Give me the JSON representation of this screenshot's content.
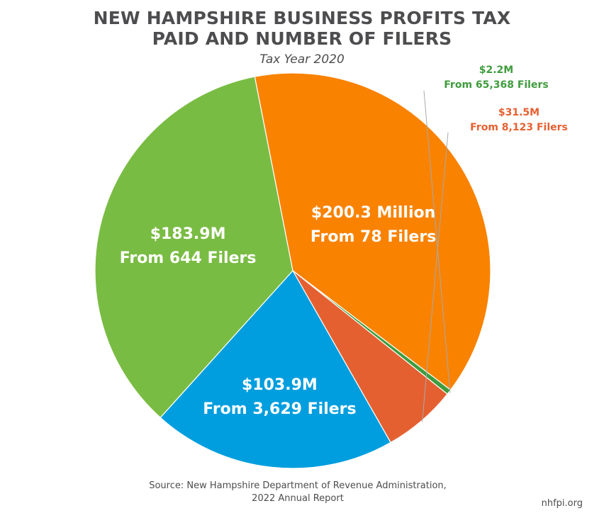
{
  "chart_data": {
    "type": "pie",
    "title_lines": [
      "NEW HAMPSHIRE BUSINESS PROFITS TAX",
      "PAID AND NUMBER OF FILERS"
    ],
    "subtitle": "Tax Year 2020",
    "slices": [
      {
        "value": 200.3,
        "amount_label": "$200.3 Million",
        "filers_label": "From 78 Filers",
        "color": "#f98200",
        "label_inside": true
      },
      {
        "value": 2.2,
        "amount_label": "$2.2M",
        "filers_label": "From 65,368 Filers",
        "color": "#3f9c3d",
        "label_inside": false
      },
      {
        "value": 31.5,
        "amount_label": "$31.5M",
        "filers_label": "From 8,123 Filers",
        "color": "#e56031",
        "label_inside": false
      },
      {
        "value": 103.9,
        "amount_label": "$103.9M",
        "filers_label": "From 3,629 Filers",
        "color": "#009ede",
        "label_inside": true
      },
      {
        "value": 183.9,
        "amount_label": "$183.9M",
        "filers_label": "From 644 Filers",
        "color": "#79bc43",
        "label_inside": true
      }
    ]
  },
  "source_lines": [
    "Source: New Hampshire Department of Revenue Administration,",
    "2022 Annual Report"
  ],
  "credit": "nhfpi.org"
}
